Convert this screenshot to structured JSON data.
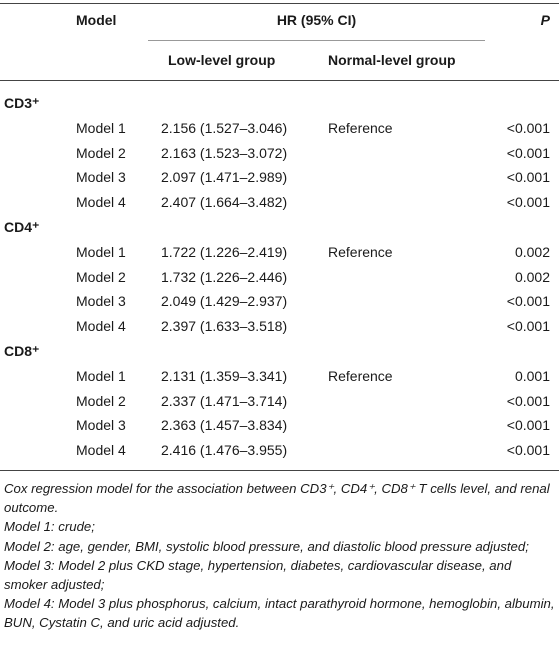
{
  "header": {
    "model": "Model",
    "hr": "HR (95% CI)",
    "low": "Low-level group",
    "normal": "Normal-level group",
    "p": "P"
  },
  "groups": [
    {
      "label": "CD3⁺",
      "rows": [
        {
          "model": "Model 1",
          "low": "2.156 (1.527–3.046)",
          "normal": "Reference",
          "p": "<0.001"
        },
        {
          "model": "Model 2",
          "low": "2.163 (1.523–3.072)",
          "p": "<0.001"
        },
        {
          "model": "Model 3",
          "low": "2.097 (1.471–2.989)",
          "p": "<0.001"
        },
        {
          "model": "Model 4",
          "low": "2.407 (1.664–3.482)",
          "p": "<0.001"
        }
      ]
    },
    {
      "label": "CD4⁺",
      "rows": [
        {
          "model": "Model 1",
          "low": "1.722 (1.226–2.419)",
          "normal": "Reference",
          "p": "0.002"
        },
        {
          "model": "Model 2",
          "low": "1.732 (1.226–2.446)",
          "p": "0.002"
        },
        {
          "model": "Model 3",
          "low": "2.049 (1.429–2.937)",
          "p": "<0.001"
        },
        {
          "model": "Model 4",
          "low": "2.397 (1.633–3.518)",
          "p": "<0.001"
        }
      ]
    },
    {
      "label": "CD8⁺",
      "rows": [
        {
          "model": "Model 1",
          "low": "2.131 (1.359–3.341)",
          "normal": "Reference",
          "p": "0.001"
        },
        {
          "model": "Model 2",
          "low": "2.337 (1.471–3.714)",
          "p": "<0.001"
        },
        {
          "model": "Model 3",
          "low": "2.363 (1.457–3.834)",
          "p": "<0.001"
        },
        {
          "model": "Model 4",
          "low": "2.416 (1.476–3.955)",
          "p": "<0.001"
        }
      ]
    }
  ],
  "notes": [
    "Cox regression model for the association between CD3⁺, CD4⁺, CD8⁺ T cells level, and renal outcome.",
    "Model 1: crude;",
    "Model 2: age, gender, BMI, systolic blood pressure, and diastolic blood pressure adjusted;",
    "Model 3: Model 2 plus CKD stage, hypertension, diabetes, cardiovascular disease, and smoker adjusted;",
    "Model 4: Model 3 plus phosphorus, calcium, intact parathyroid hormone, hemoglobin, albumin, BUN, Cystatin C, and uric acid adjusted."
  ]
}
